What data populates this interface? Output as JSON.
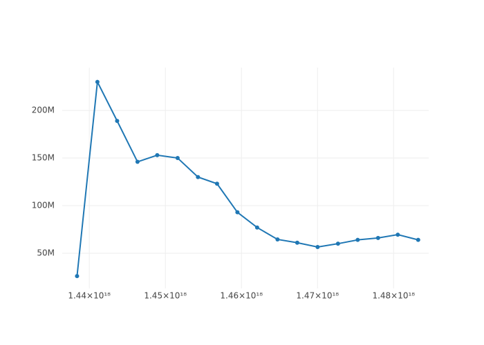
{
  "chart_data": {
    "type": "line",
    "x": [
      1.4383872e+18,
      1.4410656e+18,
      1.4436576e+18,
      1.446336e+18,
      1.448928e+18,
      1.4516064e+18,
      1.4542848e+18,
      1.4567904e+18,
      1.4594688e+18,
      1.4620608e+18,
      1.4647392e+18,
      1.4673312e+18,
      1.4700096e+18,
      1.472688e+18,
      1.47528e+18,
      1.4779584e+18,
      1.4805504e+18,
      1.4832288e+18
    ],
    "series": [
      {
        "color": "#1f77b4",
        "values": [
          26000000,
          230000000,
          189000000,
          146000000,
          153000000,
          150000000,
          130000000,
          123000000,
          93000000,
          77000000,
          64500000,
          61000000,
          56500000,
          60000000,
          64000000,
          66000000,
          69500000,
          64000000
        ]
      }
    ],
    "xlim": [
      1.43644e+18,
      1.48461e+18
    ],
    "ylim": [
      13000000,
      245000000
    ],
    "xticks": [
      {
        "value": 1.44e+18,
        "label": "1.44×10¹⁸"
      },
      {
        "value": 1.45e+18,
        "label": "1.45×10¹⁸"
      },
      {
        "value": 1.46e+18,
        "label": "1.46×10¹⁸"
      },
      {
        "value": 1.47e+18,
        "label": "1.47×10¹⁸"
      },
      {
        "value": 1.48e+18,
        "label": "1.48×10¹⁸"
      }
    ],
    "yticks": [
      {
        "value": 50000000,
        "label": "50M"
      },
      {
        "value": 100000000,
        "label": "100M"
      },
      {
        "value": 150000000,
        "label": "150M"
      },
      {
        "value": 200000000,
        "label": "200M"
      }
    ],
    "grid": true
  }
}
